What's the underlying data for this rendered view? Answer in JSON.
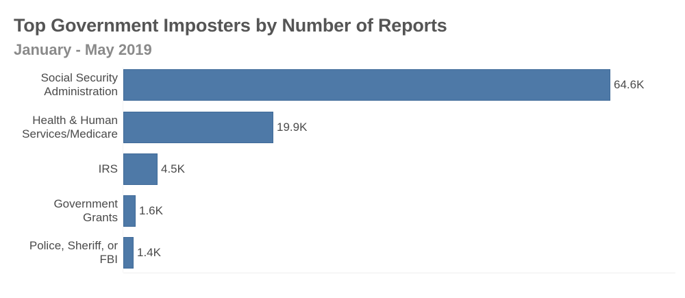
{
  "header": {
    "title": "Top Government Imposters by Number of Reports",
    "subtitle": "January - May 2019"
  },
  "chart_data": {
    "type": "bar",
    "orientation": "horizontal",
    "title": "Top Government Imposters by Number of Reports",
    "subtitle": "January - May 2019",
    "xlabel": "",
    "ylabel": "",
    "categories": [
      "Social Security Administration",
      "Health & Human Services/Medicare",
      "IRS",
      "Government Grants",
      "Police, Sheriff, or FBI"
    ],
    "values": [
      64600,
      19900,
      4500,
      1600,
      1400
    ],
    "data_labels": [
      "64.6K",
      "19.9K",
      "4.5K",
      "1.6K",
      "1.4K"
    ],
    "bar_color": "#4e79a7",
    "grid": false,
    "legend": null,
    "xlim": [
      0,
      70000
    ]
  },
  "rows": [
    {
      "line1": "Social Security",
      "line2": "Administration",
      "label": "64.6K",
      "value": 64600
    },
    {
      "line1": "Health & Human",
      "line2": "Services/Medicare",
      "label": "19.9K",
      "value": 19900
    },
    {
      "line1": "IRS",
      "line2": "",
      "label": "4.5K",
      "value": 4500
    },
    {
      "line1": "Government",
      "line2": "Grants",
      "label": "1.6K",
      "value": 1600
    },
    {
      "line1": "Police, Sheriff, or",
      "line2": "FBI",
      "label": "1.4K",
      "value": 1400
    }
  ]
}
